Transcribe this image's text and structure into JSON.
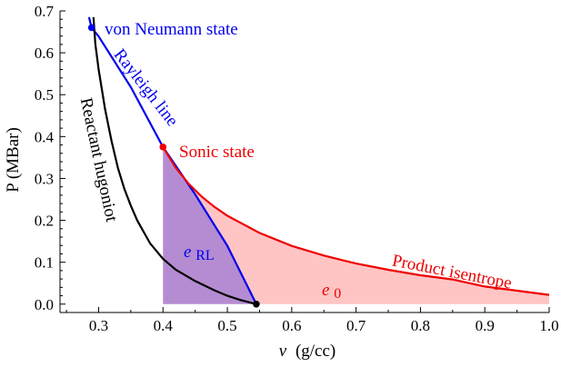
{
  "chart_data": {
    "type": "line",
    "title": "",
    "xlabel_var": "v",
    "xlabel_units": "(g/cc)",
    "ylabel": "P (MBar)",
    "xlim": [
      0.24,
      1.0
    ],
    "ylim": [
      -0.02,
      0.7
    ],
    "x_ticks": [
      0.3,
      0.4,
      0.5,
      0.6,
      0.7,
      0.8,
      0.9,
      1.0
    ],
    "x_tick_labels": [
      "0.3",
      "0.4",
      "0.5",
      "0.6",
      "0.7",
      "0.8",
      "0.9",
      "1.0"
    ],
    "y_ticks": [
      0.0,
      0.1,
      0.2,
      0.3,
      0.4,
      0.5,
      0.6,
      0.7
    ],
    "y_tick_labels": [
      "0.0",
      "0.1",
      "0.2",
      "0.3",
      "0.4",
      "0.5",
      "0.6",
      "0.7"
    ],
    "grid": false,
    "colors": {
      "rayleigh": "#0000ee",
      "product": "#ee0000",
      "reactant": "#000000",
      "area_e0": "#ffc4c4",
      "area_eRL": "#b58cd2"
    },
    "points": {
      "von_neumann": {
        "x": 0.289,
        "y": 0.66
      },
      "sonic": {
        "x": 0.4,
        "y": 0.375
      },
      "initial": {
        "x": 0.545,
        "y": 0.0
      }
    },
    "series": [
      {
        "key": "rayleigh",
        "x": [
          0.285,
          0.289,
          0.3,
          0.35,
          0.4,
          0.45,
          0.5,
          0.545
        ],
        "y": [
          0.685,
          0.66,
          0.639,
          0.518,
          0.375,
          0.262,
          0.139,
          0.0
        ]
      },
      {
        "key": "reactant",
        "x": [
          0.292,
          0.295,
          0.3,
          0.31,
          0.32,
          0.33,
          0.34,
          0.35,
          0.36,
          0.38,
          0.4,
          0.42,
          0.45,
          0.48,
          0.5,
          0.52,
          0.545
        ],
        "y": [
          0.685,
          0.62,
          0.56,
          0.465,
          0.39,
          0.325,
          0.275,
          0.235,
          0.2,
          0.145,
          0.108,
          0.082,
          0.055,
          0.033,
          0.02,
          0.01,
          0.0
        ]
      },
      {
        "key": "product",
        "x": [
          0.4,
          0.42,
          0.44,
          0.46,
          0.48,
          0.5,
          0.55,
          0.6,
          0.65,
          0.7,
          0.75,
          0.8,
          0.85,
          0.9,
          0.95,
          1.0
        ],
        "y": [
          0.375,
          0.325,
          0.287,
          0.257,
          0.232,
          0.211,
          0.17,
          0.139,
          0.116,
          0.097,
          0.082,
          0.069,
          0.059,
          0.042,
          0.032,
          0.022
        ]
      }
    ],
    "annotations": {
      "von_neumann": "von Neumann state",
      "rayleigh": "Rayleigh line",
      "sonic": "Sonic state",
      "reactant": "Reactant hugoniot",
      "product": "Product isentrope",
      "e_rl_main": "e",
      "e_rl_sub": "RL",
      "e0_main": "e",
      "e0_sub": "0"
    }
  }
}
